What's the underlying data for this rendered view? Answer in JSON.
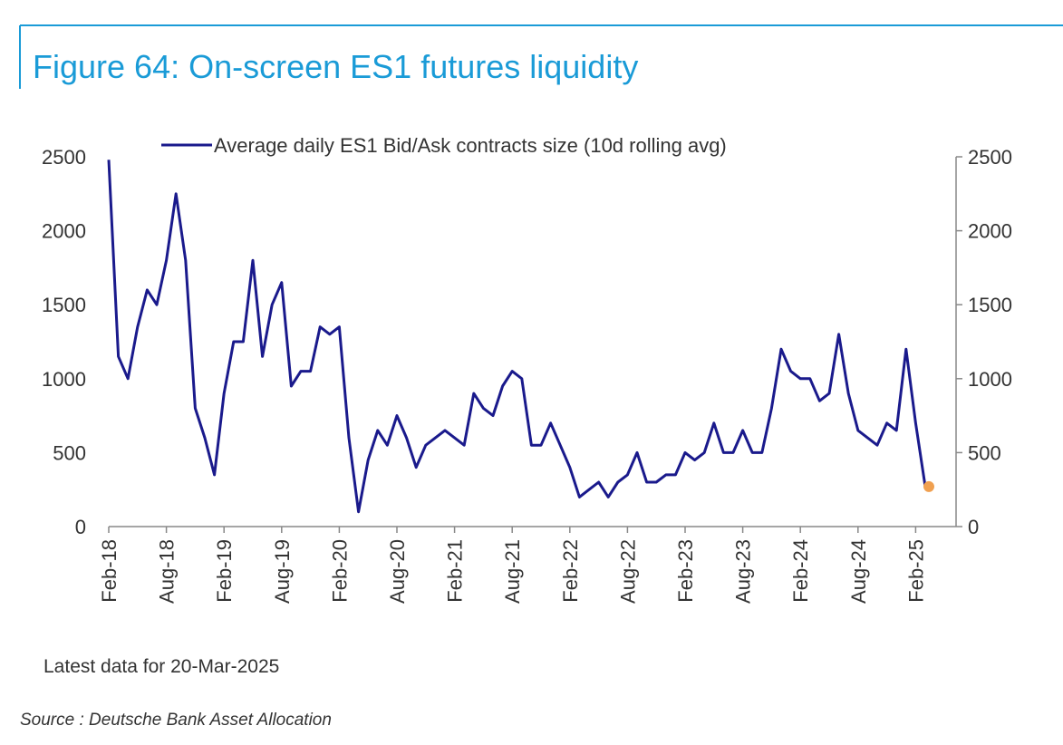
{
  "chart_data": {
    "type": "line",
    "title": "Figure 64: On-screen ES1 futures liquidity",
    "note": "Latest data for 20-Mar-2025",
    "source": "Source : Deutsche Bank Asset Allocation",
    "x": [
      "2018-02",
      "2018-03",
      "2018-04",
      "2018-05",
      "2018-06",
      "2018-07",
      "2018-08",
      "2018-09",
      "2018-10",
      "2018-11",
      "2018-12",
      "2019-01",
      "2019-02",
      "2019-03",
      "2019-04",
      "2019-05",
      "2019-06",
      "2019-07",
      "2019-08",
      "2019-09",
      "2019-10",
      "2019-11",
      "2019-12",
      "2020-01",
      "2020-02",
      "2020-03",
      "2020-04",
      "2020-05",
      "2020-06",
      "2020-07",
      "2020-08",
      "2020-09",
      "2020-10",
      "2020-11",
      "2020-12",
      "2021-01",
      "2021-02",
      "2021-03",
      "2021-04",
      "2021-05",
      "2021-06",
      "2021-07",
      "2021-08",
      "2021-09",
      "2021-10",
      "2021-11",
      "2021-12",
      "2022-01",
      "2022-02",
      "2022-03",
      "2022-04",
      "2022-05",
      "2022-06",
      "2022-07",
      "2022-08",
      "2022-09",
      "2022-10",
      "2022-11",
      "2022-12",
      "2023-01",
      "2023-02",
      "2023-03",
      "2023-04",
      "2023-05",
      "2023-06",
      "2023-07",
      "2023-08",
      "2023-09",
      "2023-10",
      "2023-11",
      "2023-12",
      "2024-01",
      "2024-02",
      "2024-03",
      "2024-04",
      "2024-05",
      "2024-06",
      "2024-07",
      "2024-08",
      "2024-09",
      "2024-10",
      "2024-11",
      "2024-12",
      "2025-01",
      "2025-02",
      "2025-03"
    ],
    "series": [
      {
        "name": "Average daily ES1 Bid/Ask contracts size (10d rolling avg)",
        "color": "#1a1a8c",
        "values": [
          2480,
          1150,
          1000,
          1350,
          1600,
          1500,
          1800,
          2250,
          1800,
          800,
          600,
          350,
          900,
          1250,
          1250,
          1800,
          1150,
          1500,
          1650,
          950,
          1050,
          1050,
          1350,
          1300,
          1350,
          600,
          100,
          450,
          650,
          550,
          750,
          600,
          400,
          550,
          600,
          650,
          600,
          550,
          900,
          800,
          750,
          950,
          1050,
          1000,
          550,
          550,
          700,
          550,
          400,
          200,
          250,
          300,
          200,
          300,
          350,
          500,
          300,
          300,
          350,
          350,
          500,
          450,
          500,
          700,
          500,
          500,
          650,
          500,
          500,
          800,
          1200,
          1050,
          1000,
          1000,
          850,
          900,
          1300,
          900,
          650,
          600,
          550,
          700,
          650,
          1200,
          700,
          270
        ]
      }
    ],
    "last_point_color": "#f0a050",
    "xticks": [
      {
        "value": "2018-02",
        "label": "Feb-18"
      },
      {
        "value": "2018-08",
        "label": "Aug-18"
      },
      {
        "value": "2019-02",
        "label": "Feb-19"
      },
      {
        "value": "2019-08",
        "label": "Aug-19"
      },
      {
        "value": "2020-02",
        "label": "Feb-20"
      },
      {
        "value": "2020-08",
        "label": "Aug-20"
      },
      {
        "value": "2021-02",
        "label": "Feb-21"
      },
      {
        "value": "2021-08",
        "label": "Aug-21"
      },
      {
        "value": "2022-02",
        "label": "Feb-22"
      },
      {
        "value": "2022-08",
        "label": "Aug-22"
      },
      {
        "value": "2023-02",
        "label": "Feb-23"
      },
      {
        "value": "2023-08",
        "label": "Aug-23"
      },
      {
        "value": "2024-02",
        "label": "Feb-24"
      },
      {
        "value": "2024-08",
        "label": "Aug-24"
      },
      {
        "value": "2025-02",
        "label": "Feb-25"
      }
    ],
    "ylim": [
      0,
      2500
    ],
    "yticks": [
      0,
      500,
      1000,
      1500,
      2000,
      2500
    ],
    "y2lim": [
      0,
      2500
    ],
    "y2ticks": [
      0,
      500,
      1000,
      1500,
      2000,
      2500
    ],
    "grid": false,
    "legend": "top"
  }
}
